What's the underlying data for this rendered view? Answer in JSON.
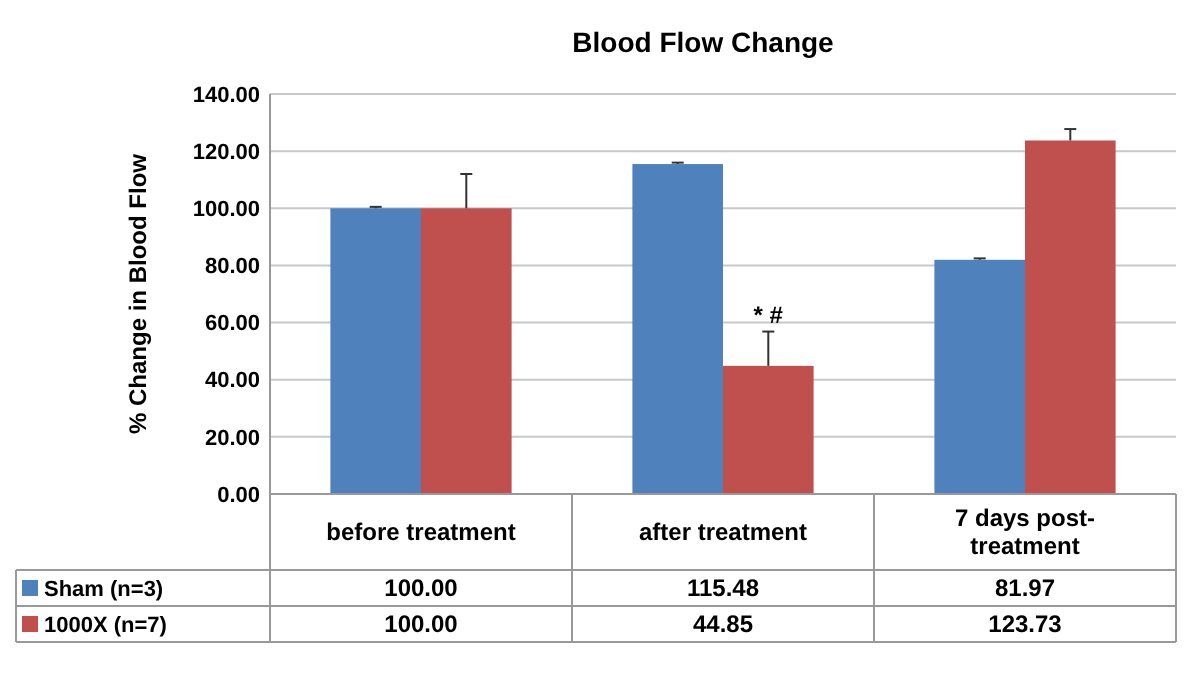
{
  "chart_data": {
    "type": "bar",
    "title": "Blood Flow Change",
    "ylabel": "% Change in Blood Flow",
    "categories": [
      "before treatment",
      "after treatment",
      "7 days post-treatment"
    ],
    "series": [
      {
        "name": "Sham (n=3)",
        "color": "#4f81bd",
        "values": [
          100.0,
          115.48,
          81.97
        ],
        "errors": [
          0.5,
          0.5,
          0.5
        ],
        "value_labels": [
          "100.00",
          "115.48",
          "81.97"
        ]
      },
      {
        "name": "1000X (n=7)",
        "color": "#c0504d",
        "values": [
          100.0,
          44.85,
          123.73
        ],
        "errors": [
          12,
          12,
          4
        ],
        "value_labels": [
          "100.00",
          "44.85",
          "123.73"
        ]
      }
    ],
    "ylim": [
      0,
      140
    ],
    "yticks": [
      {
        "value": 0,
        "label": "0.00"
      },
      {
        "value": 20,
        "label": "20.00"
      },
      {
        "value": 40,
        "label": "40.00"
      },
      {
        "value": 60,
        "label": "60.00"
      },
      {
        "value": 80,
        "label": "80.00"
      },
      {
        "value": 100,
        "label": "100.00"
      },
      {
        "value": 120,
        "label": "120.00"
      },
      {
        "value": 140,
        "label": "140.00"
      }
    ],
    "grid": "y",
    "legend": "bottom",
    "annotations": [
      {
        "text": "* #",
        "x": "after treatment",
        "y": 60
      }
    ]
  }
}
